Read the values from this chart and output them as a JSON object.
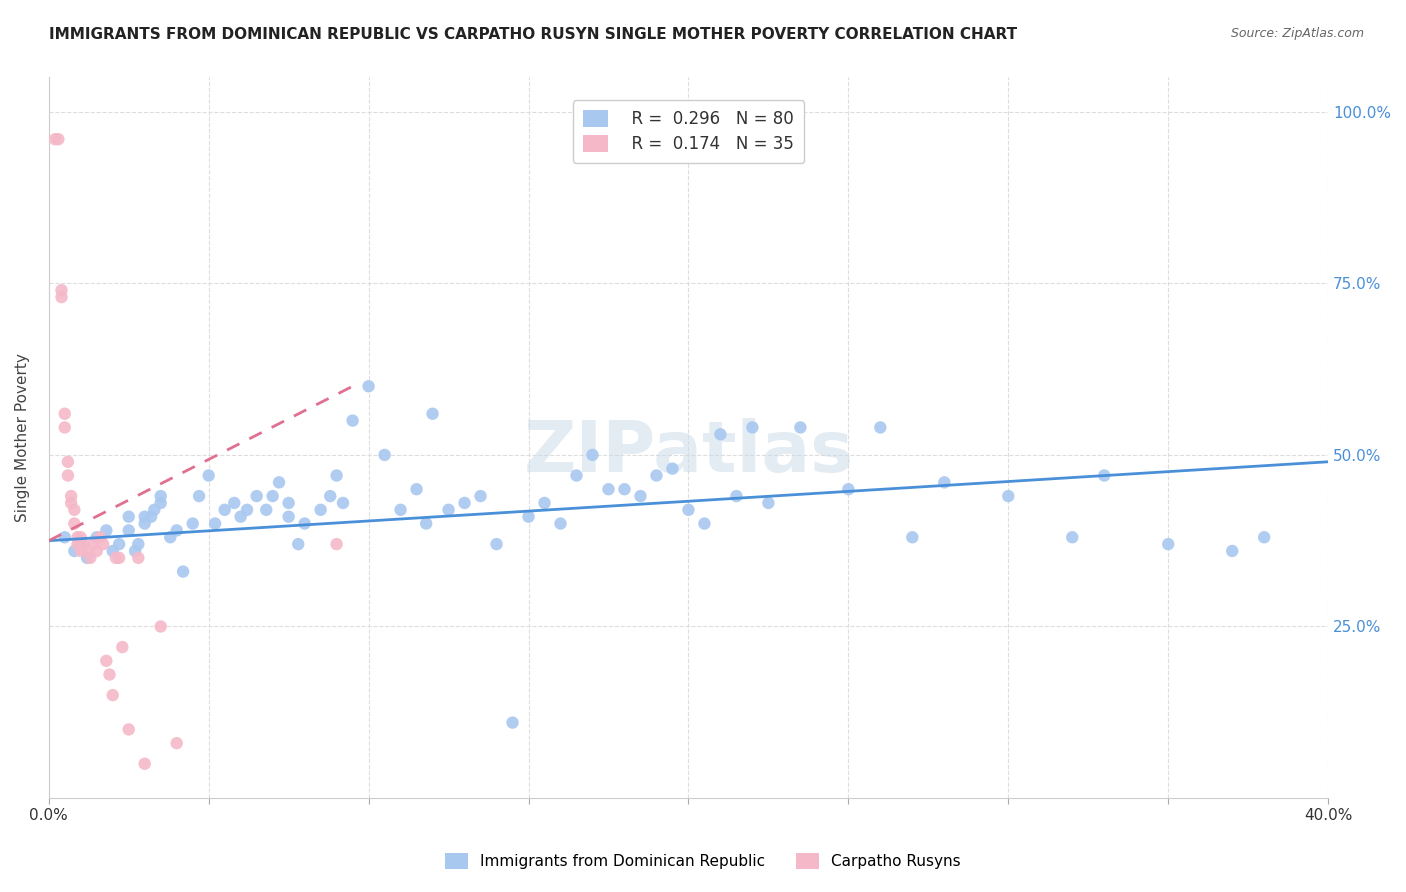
{
  "title": "IMMIGRANTS FROM DOMINICAN REPUBLIC VS CARPATHO RUSYN SINGLE MOTHER POVERTY CORRELATION CHART",
  "source": "Source: ZipAtlas.com",
  "ylabel": "Single Mother Poverty",
  "yticks": [
    "25.0%",
    "50.0%",
    "75.0%",
    "100.0%"
  ],
  "ytick_values": [
    0.25,
    0.5,
    0.75,
    1.0
  ],
  "xmin": 0.0,
  "xmax": 0.4,
  "ymin": 0.0,
  "ymax": 1.05,
  "legend_r_blue": "0.296",
  "legend_n_blue": "80",
  "legend_r_pink": "0.174",
  "legend_n_pink": "35",
  "blue_label": "Immigrants from Dominican Republic",
  "pink_label": "Carpatho Rusyns",
  "blue_color": "#a8c8f0",
  "pink_color": "#f5b8c8",
  "trendline_blue": "#4a90d9",
  "trendline_pink": "#e07090",
  "blue_scatter_x": [
    0.005,
    0.008,
    0.01,
    0.012,
    0.015,
    0.018,
    0.02,
    0.022,
    0.025,
    0.025,
    0.027,
    0.028,
    0.03,
    0.03,
    0.032,
    0.033,
    0.035,
    0.035,
    0.038,
    0.04,
    0.042,
    0.045,
    0.047,
    0.05,
    0.052,
    0.055,
    0.058,
    0.06,
    0.062,
    0.065,
    0.068,
    0.07,
    0.072,
    0.075,
    0.075,
    0.078,
    0.08,
    0.085,
    0.088,
    0.09,
    0.092,
    0.095,
    0.1,
    0.105,
    0.11,
    0.115,
    0.118,
    0.12,
    0.125,
    0.13,
    0.135,
    0.14,
    0.145,
    0.15,
    0.155,
    0.16,
    0.165,
    0.17,
    0.175,
    0.18,
    0.185,
    0.19,
    0.195,
    0.2,
    0.205,
    0.21,
    0.215,
    0.22,
    0.225,
    0.235,
    0.25,
    0.26,
    0.27,
    0.28,
    0.3,
    0.32,
    0.33,
    0.35,
    0.37,
    0.38
  ],
  "blue_scatter_y": [
    0.38,
    0.36,
    0.37,
    0.35,
    0.38,
    0.39,
    0.36,
    0.37,
    0.39,
    0.41,
    0.36,
    0.37,
    0.41,
    0.4,
    0.41,
    0.42,
    0.43,
    0.44,
    0.38,
    0.39,
    0.33,
    0.4,
    0.44,
    0.47,
    0.4,
    0.42,
    0.43,
    0.41,
    0.42,
    0.44,
    0.42,
    0.44,
    0.46,
    0.41,
    0.43,
    0.37,
    0.4,
    0.42,
    0.44,
    0.47,
    0.43,
    0.55,
    0.6,
    0.5,
    0.42,
    0.45,
    0.4,
    0.56,
    0.42,
    0.43,
    0.44,
    0.37,
    0.11,
    0.41,
    0.43,
    0.4,
    0.47,
    0.5,
    0.45,
    0.45,
    0.44,
    0.47,
    0.48,
    0.42,
    0.4,
    0.53,
    0.44,
    0.54,
    0.43,
    0.54,
    0.45,
    0.54,
    0.38,
    0.46,
    0.44,
    0.38,
    0.47,
    0.37,
    0.36,
    0.38
  ],
  "pink_scatter_x": [
    0.002,
    0.003,
    0.004,
    0.004,
    0.005,
    0.005,
    0.006,
    0.006,
    0.007,
    0.007,
    0.008,
    0.008,
    0.009,
    0.009,
    0.01,
    0.01,
    0.011,
    0.012,
    0.013,
    0.014,
    0.015,
    0.016,
    0.017,
    0.018,
    0.019,
    0.02,
    0.021,
    0.022,
    0.023,
    0.025,
    0.028,
    0.03,
    0.035,
    0.04,
    0.09
  ],
  "pink_scatter_y": [
    0.96,
    0.96,
    0.74,
    0.73,
    0.56,
    0.54,
    0.49,
    0.47,
    0.43,
    0.44,
    0.42,
    0.4,
    0.38,
    0.37,
    0.38,
    0.36,
    0.37,
    0.36,
    0.35,
    0.37,
    0.36,
    0.38,
    0.37,
    0.2,
    0.18,
    0.15,
    0.35,
    0.35,
    0.22,
    0.1,
    0.35,
    0.05,
    0.25,
    0.08,
    0.37
  ],
  "blue_trend_x": [
    0.0,
    0.4
  ],
  "blue_trend_y": [
    0.375,
    0.49
  ],
  "pink_trend_x": [
    0.0,
    0.095
  ],
  "pink_trend_y": [
    0.375,
    0.6
  ],
  "watermark": "ZIPatlas",
  "watermark_color": "#c8d8e8",
  "watermark_alpha": 0.5
}
